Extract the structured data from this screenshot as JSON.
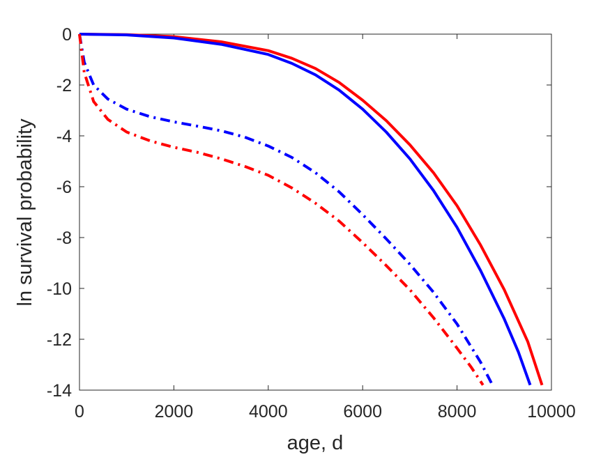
{
  "chart_data": {
    "type": "line",
    "xlabel": "age, d",
    "ylabel": "ln survival probability",
    "xlim": [
      0,
      10000
    ],
    "ylim": [
      -14,
      0
    ],
    "xticks": [
      0,
      2000,
      4000,
      6000,
      8000,
      10000
    ],
    "yticks": [
      -14,
      -12,
      -10,
      -8,
      -6,
      -4,
      -2,
      0
    ],
    "grid": false,
    "legend": "none",
    "series": [
      {
        "color": "#ff0000",
        "style": "solid",
        "x": [
          0,
          1000,
          2000,
          3000,
          4000,
          4500,
          5000,
          5500,
          6000,
          6500,
          7000,
          7500,
          8000,
          8500,
          9000,
          9500,
          9800
        ],
        "y": [
          0,
          -0.02,
          -0.1,
          -0.3,
          -0.65,
          -0.95,
          -1.35,
          -1.9,
          -2.6,
          -3.4,
          -4.35,
          -5.45,
          -6.75,
          -8.3,
          -10.05,
          -12.1,
          -13.8
        ]
      },
      {
        "color": "#0000ff",
        "style": "solid",
        "x": [
          0,
          1000,
          2000,
          3000,
          4000,
          4500,
          5000,
          5500,
          6000,
          6500,
          7000,
          7500,
          8000,
          8500,
          9000,
          9300,
          9550
        ],
        "y": [
          0,
          -0.03,
          -0.15,
          -0.4,
          -0.8,
          -1.15,
          -1.6,
          -2.2,
          -2.95,
          -3.85,
          -4.9,
          -6.15,
          -7.6,
          -9.3,
          -11.2,
          -12.5,
          -13.8
        ]
      },
      {
        "color": "#0000ff",
        "style": "dashdot",
        "x": [
          0,
          100,
          300,
          600,
          1000,
          1500,
          2000,
          2500,
          3000,
          3500,
          4000,
          4500,
          5000,
          5500,
          6000,
          6500,
          7000,
          7500,
          8000,
          8500,
          8750
        ],
        "y": [
          0,
          -1.1,
          -2.0,
          -2.55,
          -2.95,
          -3.25,
          -3.45,
          -3.62,
          -3.8,
          -4.05,
          -4.4,
          -4.85,
          -5.45,
          -6.2,
          -7.1,
          -8.05,
          -9.05,
          -10.15,
          -11.4,
          -12.9,
          -13.8
        ]
      },
      {
        "color": "#ff0000",
        "style": "dashdot",
        "x": [
          0,
          100,
          300,
          600,
          1000,
          1500,
          2000,
          2500,
          3000,
          3500,
          4000,
          4500,
          5000,
          5500,
          6000,
          6500,
          7000,
          7500,
          8000,
          8300,
          8550
        ],
        "y": [
          0,
          -1.5,
          -2.65,
          -3.35,
          -3.85,
          -4.2,
          -4.45,
          -4.65,
          -4.9,
          -5.2,
          -5.55,
          -6.05,
          -6.65,
          -7.35,
          -8.2,
          -9.1,
          -10.05,
          -11.15,
          -12.35,
          -13.1,
          -13.8
        ]
      }
    ]
  }
}
